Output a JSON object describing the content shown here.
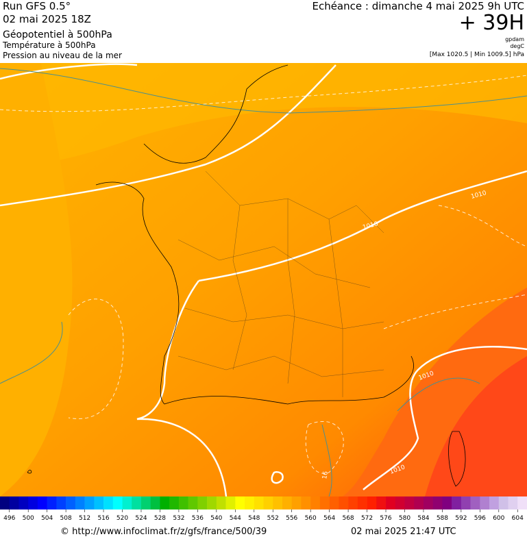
{
  "header": {
    "run": "Run GFS 0.5°",
    "run_date": "02 mai 2025 18Z",
    "field1": "Géopotentiel à 500hPa",
    "field2": "Température à 500hPa",
    "field3": "Pression au niveau de la mer",
    "valid": "Echéance : dimanche 4 mai 2025 9h UTC",
    "lead": "+ 39H",
    "unit1": "gpdam",
    "unit2": "degC",
    "pressure_range": "[Max 1020.5 | Min 1009.5] hPa"
  },
  "map": {
    "contour_labels": [
      "1010",
      "1010",
      "1010",
      "1010",
      "16"
    ]
  },
  "colorbar": {
    "ticks": [
      496,
      500,
      504,
      508,
      512,
      516,
      520,
      524,
      528,
      532,
      536,
      540,
      544,
      548,
      552,
      556,
      560,
      564,
      568,
      572,
      576,
      580,
      584,
      588,
      592,
      596,
      600,
      604
    ],
    "colors": [
      "#000080",
      "#0000a0",
      "#0000c0",
      "#0000e0",
      "#0000ff",
      "#0020ff",
      "#0040ff",
      "#0060ff",
      "#0080ff",
      "#00a0ff",
      "#00c0ff",
      "#00e0ff",
      "#00ffff",
      "#00f0d0",
      "#00e0a0",
      "#00d070",
      "#00c040",
      "#00b000",
      "#20b800",
      "#40c000",
      "#60c800",
      "#80d000",
      "#a0d800",
      "#c0e000",
      "#e0f000",
      "#ffff00",
      "#fff000",
      "#ffe000",
      "#ffd000",
      "#ffc000",
      "#ffb000",
      "#ffa000",
      "#ff9000",
      "#ff8000",
      "#ff7000",
      "#ff6000",
      "#ff5000",
      "#ff4000",
      "#ff3000",
      "#ff2000",
      "#f01010",
      "#e00020",
      "#d00030",
      "#c00040",
      "#b00050",
      "#a00060",
      "#900070",
      "#800080",
      "#8020a0",
      "#9040b0",
      "#a060c0",
      "#b080d0",
      "#c0a0e0",
      "#d0c0e8",
      "#e0d0f0",
      "#f0e0f8"
    ]
  },
  "footer": {
    "url": "© http://www.infoclimat.fr/z/gfs/france/500/39",
    "generated": "02 mai 2025 21:47 UTC"
  }
}
